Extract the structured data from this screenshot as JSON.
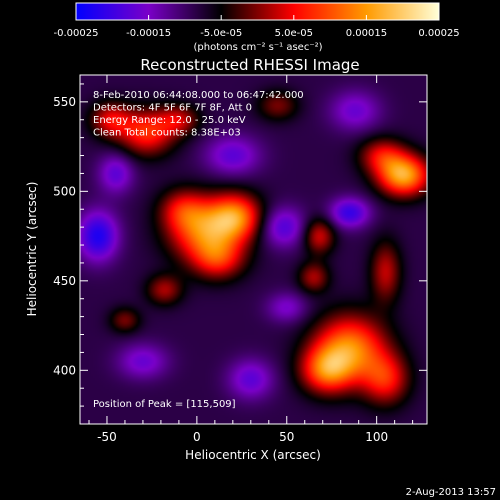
{
  "chart_data": {
    "type": "heatmap",
    "title": "Reconstructed RHESSI Image",
    "xlabel": "Heliocentric X (arcsec)",
    "ylabel": "Heliocentric Y (arcsec)",
    "xlim": [
      -65,
      128
    ],
    "ylim": [
      370,
      565
    ],
    "xticks": [
      -50,
      0,
      50,
      100
    ],
    "yticks": [
      400,
      450,
      500,
      550
    ],
    "colorbar": {
      "min": -0.00025,
      "max": 0.00025,
      "ticks": [
        "-0.00025",
        "-0.00015",
        "-5.0e-05",
        "5.0e-05",
        "0.00015",
        "0.00025"
      ],
      "tick_values": [
        -0.00025,
        -0.00015,
        -5e-05,
        5e-05,
        0.00015,
        0.00025
      ],
      "unit_label": "(photons cm⁻² s⁻¹ asec⁻²)",
      "colors": [
        "#0000ff",
        "#7a00c8",
        "#000000",
        "#ff0000",
        "#ff9a00",
        "#ffffd8"
      ]
    },
    "annotations": [
      "8-Feb-2010 06:44:08.000 to 06:47:42.000",
      "Detectors: 4F 5F 6F 7F 8F, Att 0",
      "Energy Range: 12.0 - 25.0 keV",
      "Clean    Total counts: 8.38E+03"
    ],
    "peak_label": "Position of Peak = [115,509]",
    "peak": [
      115,
      509
    ],
    "sources": [
      {
        "x": 5,
        "y": 478,
        "sx": 14,
        "sy": 12,
        "value": 0.00021
      },
      {
        "x": 22,
        "y": 486,
        "sx": 10,
        "sy": 9,
        "value": 0.00018
      },
      {
        "x": 12,
        "y": 462,
        "sx": 10,
        "sy": 8,
        "value": 0.00012
      },
      {
        "x": -8,
        "y": 490,
        "sx": 9,
        "sy": 8,
        "value": 0.0001
      },
      {
        "x": 115,
        "y": 509,
        "sx": 10,
        "sy": 8,
        "value": 0.00025
      },
      {
        "x": 103,
        "y": 520,
        "sx": 9,
        "sy": 7,
        "value": 0.00012
      },
      {
        "x": 85,
        "y": 412,
        "sx": 14,
        "sy": 13,
        "value": 0.00022
      },
      {
        "x": 72,
        "y": 400,
        "sx": 10,
        "sy": 9,
        "value": 0.00017
      },
      {
        "x": 105,
        "y": 395,
        "sx": 9,
        "sy": 10,
        "value": 0.00014
      },
      {
        "x": -28,
        "y": 533,
        "sx": 11,
        "sy": 9,
        "value": 0.00016
      },
      {
        "x": -48,
        "y": 540,
        "sx": 8,
        "sy": 7,
        "value": 0.00012
      },
      {
        "x": -10,
        "y": 540,
        "sx": 8,
        "sy": 6,
        "value": 0.0001
      },
      {
        "x": 68,
        "y": 475,
        "sx": 6,
        "sy": 7,
        "value": 0.00012
      },
      {
        "x": 65,
        "y": 452,
        "sx": 6,
        "sy": 6,
        "value": 0.0001
      },
      {
        "x": 105,
        "y": 455,
        "sx": 6,
        "sy": 12,
        "value": 0.00011
      },
      {
        "x": -18,
        "y": 445,
        "sx": 7,
        "sy": 6,
        "value": 0.0001
      },
      {
        "x": -40,
        "y": 428,
        "sx": 6,
        "sy": 5,
        "value": 8e-05
      },
      {
        "x": 45,
        "y": 548,
        "sx": 8,
        "sy": 6,
        "value": 8e-05
      },
      {
        "x": -55,
        "y": 475,
        "sx": 8,
        "sy": 10,
        "value": -0.00014
      },
      {
        "x": 48,
        "y": 480,
        "sx": 9,
        "sy": 8,
        "value": -0.0001
      },
      {
        "x": 85,
        "y": 488,
        "sx": 8,
        "sy": 6,
        "value": -0.00012
      },
      {
        "x": 30,
        "y": 395,
        "sx": 9,
        "sy": 8,
        "value": -9e-05
      },
      {
        "x": -30,
        "y": 405,
        "sx": 10,
        "sy": 7,
        "value": -8e-05
      },
      {
        "x": 20,
        "y": 520,
        "sx": 11,
        "sy": 8,
        "value": -9e-05
      },
      {
        "x": 50,
        "y": 435,
        "sx": 8,
        "sy": 6,
        "value": -7e-05
      },
      {
        "x": 88,
        "y": 545,
        "sx": 10,
        "sy": 8,
        "value": -8e-05
      },
      {
        "x": -45,
        "y": 510,
        "sx": 7,
        "sy": 8,
        "value": -9e-05
      }
    ]
  },
  "footer": {
    "date": "2-Aug-2013 13:57"
  }
}
